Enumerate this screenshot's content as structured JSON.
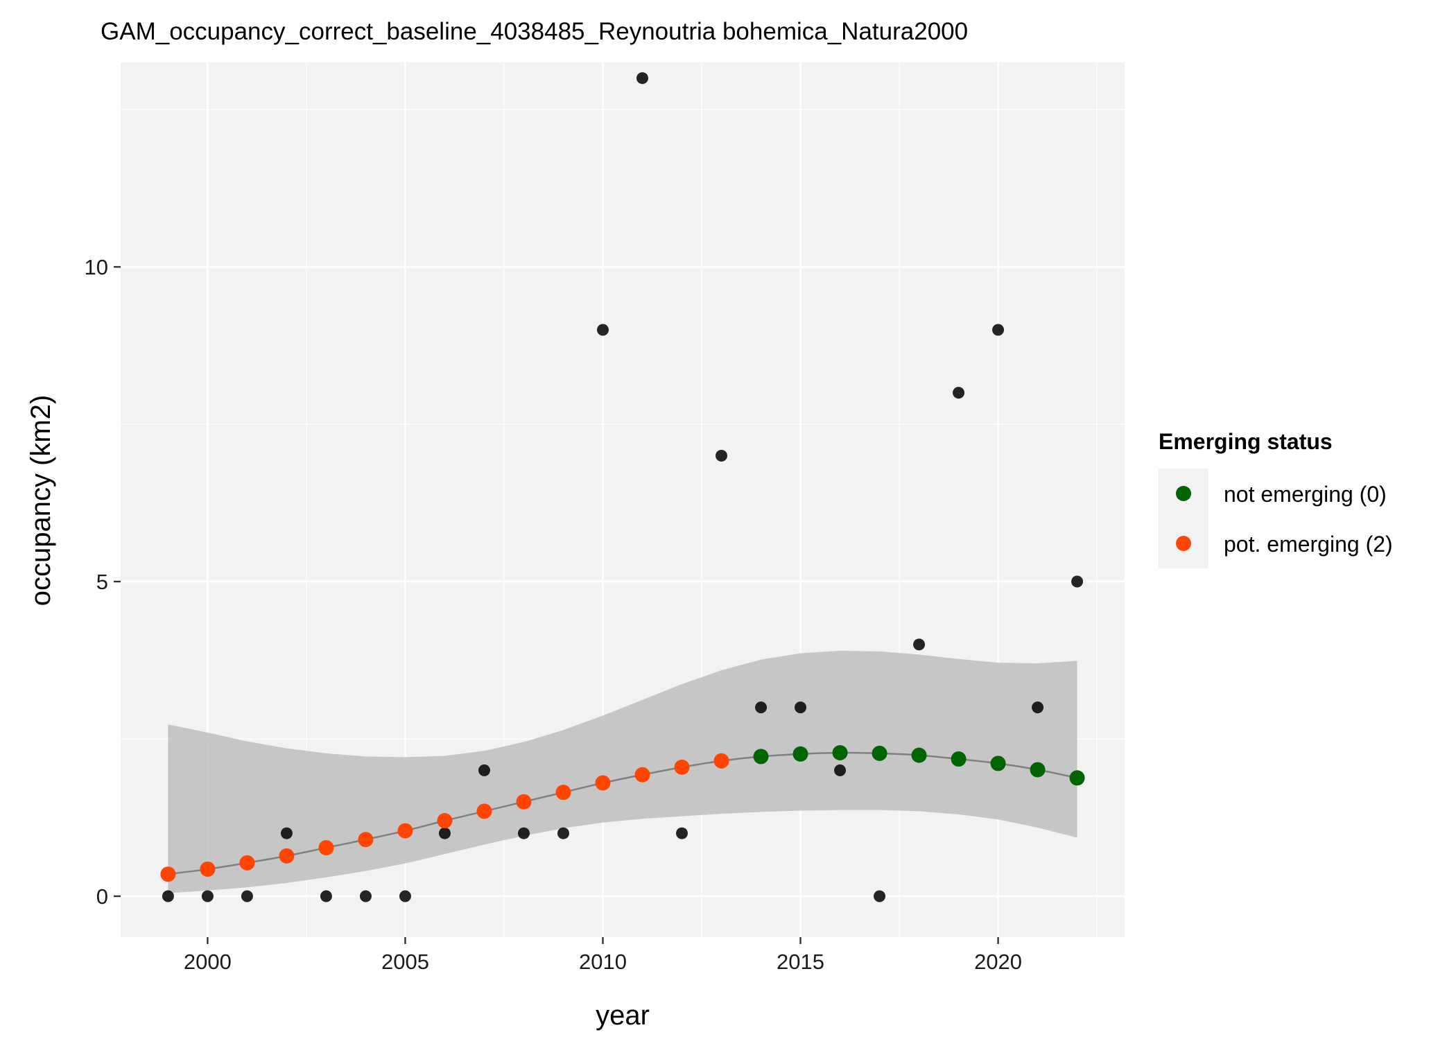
{
  "chart_data": {
    "type": "scatter",
    "title": "GAM_occupancy_correct_baseline_4038485_Reynoutria bohemica_Natura2000",
    "xlabel": "year",
    "ylabel": "occupancy (km2)",
    "xlim": [
      1997.8,
      2023.2
    ],
    "ylim": [
      -0.65,
      13.25
    ],
    "x_ticks": [
      2000,
      2005,
      2010,
      2015,
      2020
    ],
    "y_ticks": [
      0,
      5,
      10
    ],
    "grid": true,
    "legend": {
      "title": "Emerging status",
      "position": "right",
      "items": [
        {
          "label": "not emerging (0)",
          "color": "#006400"
        },
        {
          "label": "pot. emerging (2)",
          "color": "#FF4500"
        }
      ]
    },
    "observed": {
      "color": "#000000",
      "x": [
        1999,
        2000,
        2001,
        2002,
        2003,
        2004,
        2005,
        2006,
        2007,
        2008,
        2009,
        2010,
        2011,
        2012,
        2013,
        2014,
        2015,
        2016,
        2017,
        2018,
        2019,
        2020,
        2021,
        2022
      ],
      "y": [
        0,
        0,
        0,
        1,
        0,
        0,
        0,
        1,
        2,
        1,
        1,
        9,
        13,
        1,
        7,
        3,
        3,
        2,
        0,
        4,
        8,
        9,
        3,
        5
      ]
    },
    "gam_fit": {
      "line_color": "#808080",
      "band_color": "#bebebe",
      "x": [
        1999,
        2000,
        2001,
        2002,
        2003,
        2004,
        2005,
        2006,
        2007,
        2008,
        2009,
        2010,
        2011,
        2012,
        2013,
        2014,
        2015,
        2016,
        2017,
        2018,
        2019,
        2020,
        2021,
        2022
      ],
      "fit": [
        0.35,
        0.43,
        0.53,
        0.64,
        0.77,
        0.9,
        1.04,
        1.2,
        1.35,
        1.5,
        1.65,
        1.8,
        1.93,
        2.05,
        2.15,
        2.22,
        2.26,
        2.28,
        2.27,
        2.24,
        2.18,
        2.11,
        2.01,
        1.88
      ],
      "lower": [
        0.05,
        0.09,
        0.14,
        0.21,
        0.3,
        0.4,
        0.52,
        0.67,
        0.82,
        0.96,
        1.08,
        1.17,
        1.23,
        1.27,
        1.31,
        1.34,
        1.36,
        1.37,
        1.37,
        1.35,
        1.3,
        1.22,
        1.09,
        0.93
      ],
      "upper": [
        2.73,
        2.6,
        2.46,
        2.35,
        2.27,
        2.22,
        2.21,
        2.23,
        2.31,
        2.45,
        2.64,
        2.87,
        3.12,
        3.37,
        3.59,
        3.76,
        3.86,
        3.9,
        3.89,
        3.84,
        3.77,
        3.71,
        3.7,
        3.74
      ],
      "status": [
        "pot. emerging (2)",
        "pot. emerging (2)",
        "pot. emerging (2)",
        "pot. emerging (2)",
        "pot. emerging (2)",
        "pot. emerging (2)",
        "pot. emerging (2)",
        "pot. emerging (2)",
        "pot. emerging (2)",
        "pot. emerging (2)",
        "pot. emerging (2)",
        "pot. emerging (2)",
        "pot. emerging (2)",
        "pot. emerging (2)",
        "pot. emerging (2)",
        "not emerging (0)",
        "not emerging (0)",
        "not emerging (0)",
        "not emerging (0)",
        "not emerging (0)",
        "not emerging (0)",
        "not emerging (0)",
        "not emerging (0)",
        "not emerging (0)"
      ]
    },
    "panel_background": "#f2f2f2",
    "grid_color": "#ffffff"
  }
}
